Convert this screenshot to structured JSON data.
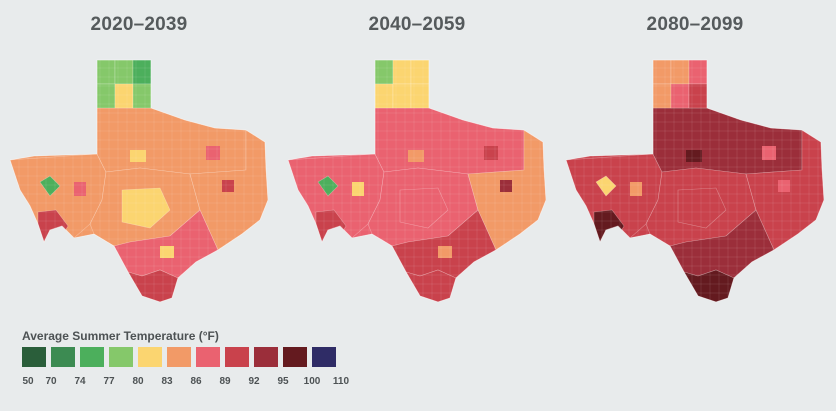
{
  "maps": [
    {
      "title": "2020–2039",
      "panhandle": [
        "#85c86a",
        "#85c86a",
        "#4caf5c",
        "#85c86a",
        "#fbd570",
        "#85c86a"
      ],
      "north": "#f29a67",
      "central": "#f29a67",
      "east": "#f29a67",
      "west": "#f29a67",
      "bigbend": "#c9424c",
      "elpaso": "#4caf5c",
      "south": "#ea6270",
      "valley": "#c9424c",
      "hill": "#fbd570",
      "patches": [
        "#fbd570",
        "#ea6270",
        "#fbd570",
        "#ea6270",
        "#c9424c"
      ]
    },
    {
      "title": "2040–2059",
      "panhandle": [
        "#85c86a",
        "#fbd570",
        "#fbd570",
        "#fbd570",
        "#fbd570",
        "#fbd570"
      ],
      "north": "#ea6270",
      "central": "#ea6270",
      "east": "#f29a67",
      "west": "#ea6270",
      "bigbend": "#c9424c",
      "elpaso": "#4caf5c",
      "south": "#c9424c",
      "valley": "#c9424c",
      "hill": "#ea6270",
      "patches": [
        "#f29a67",
        "#c9424c",
        "#f29a67",
        "#fbd570",
        "#9b2e3a"
      ]
    },
    {
      "title": "2080–2099",
      "panhandle": [
        "#f29a67",
        "#f29a67",
        "#ea6270",
        "#f29a67",
        "#ea6270",
        "#c9424c"
      ],
      "north": "#9b2e3a",
      "central": "#c9424c",
      "east": "#c9424c",
      "west": "#c9424c",
      "bigbend": "#641a1f",
      "elpaso": "#fbd570",
      "south": "#9b2e3a",
      "valley": "#641a1f",
      "hill": "#c9424c",
      "patches": [
        "#641a1f",
        "#ea6270",
        "#9b2e3a",
        "#f29a67",
        "#ea6270"
      ]
    }
  ],
  "legend": {
    "title": "Average Summer Temperature (°F)",
    "colors": [
      "#2a5e3a",
      "#3c8b52",
      "#4caf5c",
      "#85c86a",
      "#fbd570",
      "#f29a67",
      "#ea6270",
      "#c9424c",
      "#9b2e3a",
      "#641a1f",
      "#2f2c66"
    ],
    "ticks": [
      "50",
      "70",
      "74",
      "77",
      "80",
      "83",
      "86",
      "89",
      "92",
      "95",
      "100",
      "110"
    ]
  }
}
